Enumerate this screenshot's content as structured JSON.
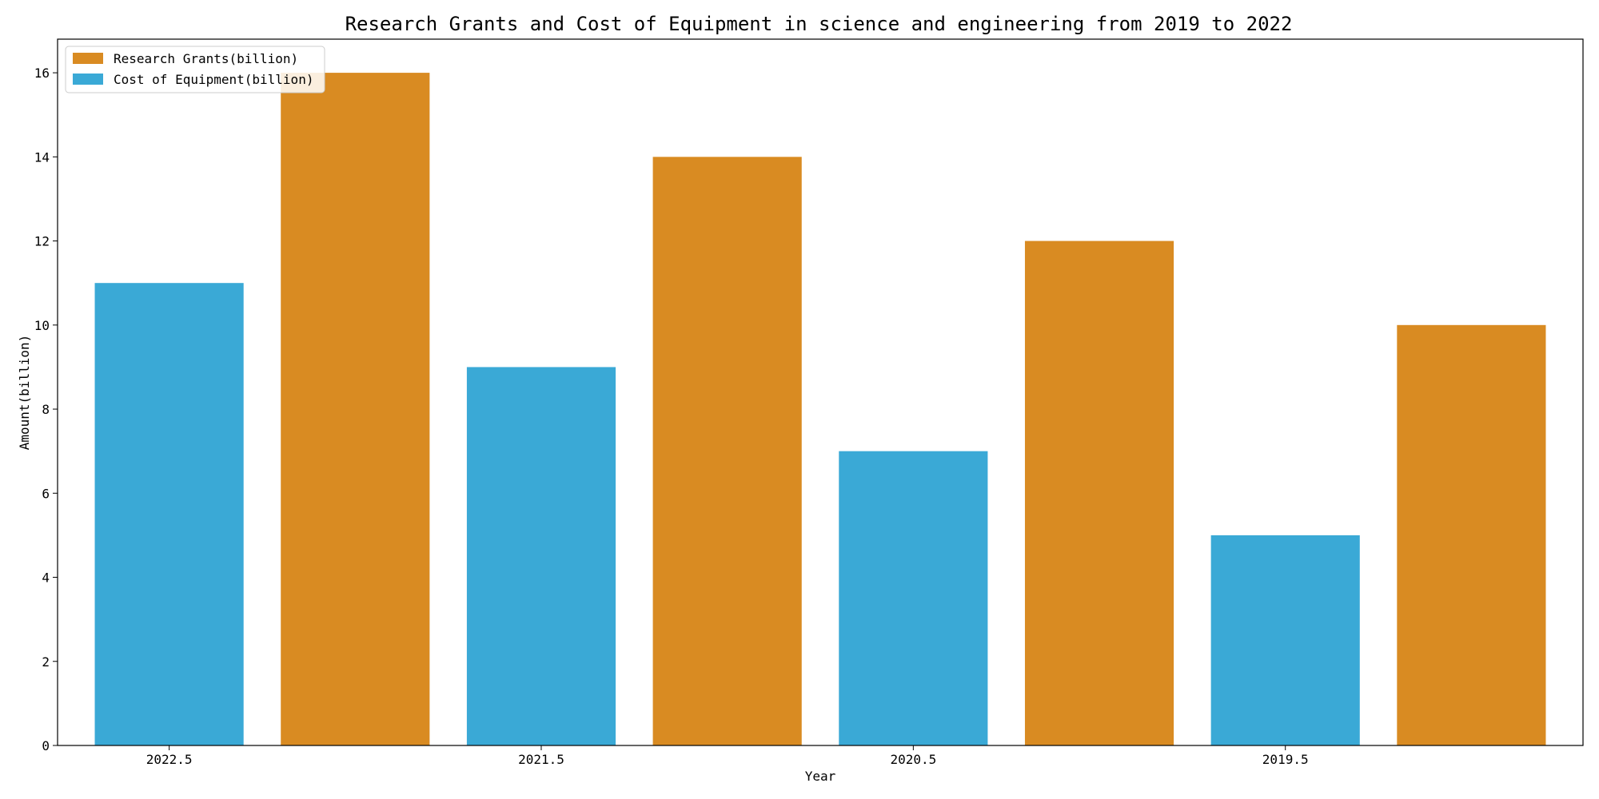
{
  "chart_data": {
    "type": "bar",
    "title": "Research Grants and Cost of Equipment in science and engineering from 2019 to 2022",
    "xlabel": "Year",
    "ylabel": "Amount(billion)",
    "ylim": [
      0,
      16.8
    ],
    "yticks": [
      0,
      2,
      4,
      6,
      8,
      10,
      12,
      14,
      16
    ],
    "xlim": [
      2022.8,
      2018.7
    ],
    "xticks": [
      "2022.5",
      "2021.5",
      "2020.5",
      "2019.5"
    ],
    "bar_width": 0.4,
    "grid": false,
    "legend_position": "top-left",
    "series": [
      {
        "name": "Research Grants(billion)",
        "color": "#d98b22",
        "x": [
          2022,
          2021,
          2020,
          2019
        ],
        "values": [
          16,
          14,
          12,
          10
        ]
      },
      {
        "name": "Cost of Equipment(billion)",
        "color": "#3aa9d6",
        "x": [
          2022.5,
          2021.5,
          2020.5,
          2019.5
        ],
        "values": [
          11,
          9,
          7,
          5
        ]
      }
    ]
  }
}
